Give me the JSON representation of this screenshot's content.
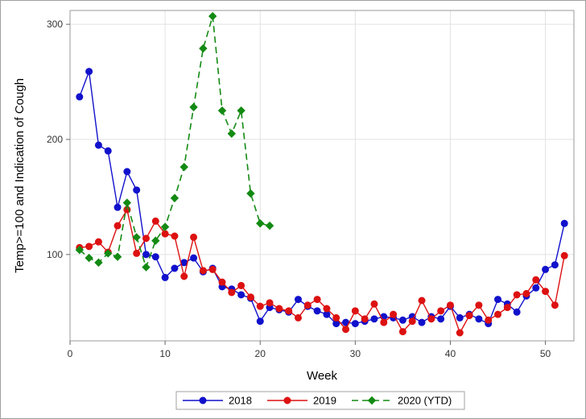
{
  "chart_data": {
    "type": "line",
    "title": "",
    "xlabel": "Week",
    "ylabel": "Temp>=100 and Indication of Cough",
    "xlim": [
      0,
      53
    ],
    "ylim": [
      25,
      312
    ],
    "xticks": [
      0,
      10,
      20,
      30,
      40,
      50
    ],
    "yticks": [
      100,
      200,
      300
    ],
    "grid": true,
    "legend_position": "bottom",
    "series": [
      {
        "name": "2018",
        "color": "#1111cc",
        "marker": "circle",
        "dash": "solid",
        "x": [
          1,
          2,
          3,
          4,
          5,
          6,
          7,
          8,
          9,
          10,
          11,
          12,
          13,
          14,
          15,
          16,
          17,
          18,
          19,
          20,
          21,
          22,
          23,
          24,
          25,
          26,
          27,
          28,
          29,
          30,
          31,
          32,
          33,
          34,
          35,
          36,
          37,
          38,
          39,
          40,
          41,
          42,
          43,
          44,
          45,
          46,
          47,
          48,
          49,
          50,
          51,
          52
        ],
        "y": [
          237,
          259,
          195,
          190,
          141,
          172,
          156,
          100,
          98,
          80,
          88,
          93,
          97,
          85,
          88,
          72,
          70,
          65,
          62,
          42,
          54,
          52,
          50,
          61,
          55,
          51,
          48,
          40,
          41,
          40,
          42,
          44,
          46,
          45,
          43,
          46,
          41,
          46,
          44,
          55,
          45,
          48,
          44,
          40,
          61,
          57,
          50,
          64,
          71,
          87,
          91,
          127
        ]
      },
      {
        "name": "2019",
        "color": "#dd1111",
        "marker": "circle",
        "dash": "solid",
        "x": [
          1,
          2,
          3,
          4,
          5,
          6,
          7,
          8,
          9,
          10,
          11,
          12,
          13,
          14,
          15,
          16,
          17,
          18,
          19,
          20,
          21,
          22,
          23,
          24,
          25,
          26,
          27,
          28,
          29,
          30,
          31,
          32,
          33,
          34,
          35,
          36,
          37,
          38,
          39,
          40,
          41,
          42,
          43,
          44,
          45,
          46,
          47,
          48,
          49,
          50,
          51,
          52
        ],
        "y": [
          106,
          107,
          111,
          102,
          125,
          139,
          101,
          114,
          129,
          118,
          116,
          81,
          115,
          86,
          87,
          76,
          67,
          73,
          63,
          55,
          58,
          53,
          51,
          45,
          56,
          61,
          53,
          45,
          35,
          51,
          44,
          57,
          41,
          48,
          33,
          42,
          60,
          44,
          51,
          56,
          32,
          47,
          56,
          43,
          48,
          54,
          65,
          66,
          78,
          68,
          56,
          99
        ]
      },
      {
        "name": "2020 (YTD)",
        "color": "#138a13",
        "marker": "diamond",
        "dash": "dashed",
        "x": [
          1,
          2,
          3,
          4,
          5,
          6,
          7,
          8,
          9,
          10,
          11,
          12,
          13,
          14,
          15,
          16,
          17,
          18,
          19,
          20,
          21
        ],
        "y": [
          104,
          97,
          93,
          101,
          98,
          145,
          115,
          89,
          112,
          124,
          149,
          176,
          228,
          279,
          307,
          225,
          205,
          225,
          153,
          127,
          125
        ]
      }
    ]
  }
}
